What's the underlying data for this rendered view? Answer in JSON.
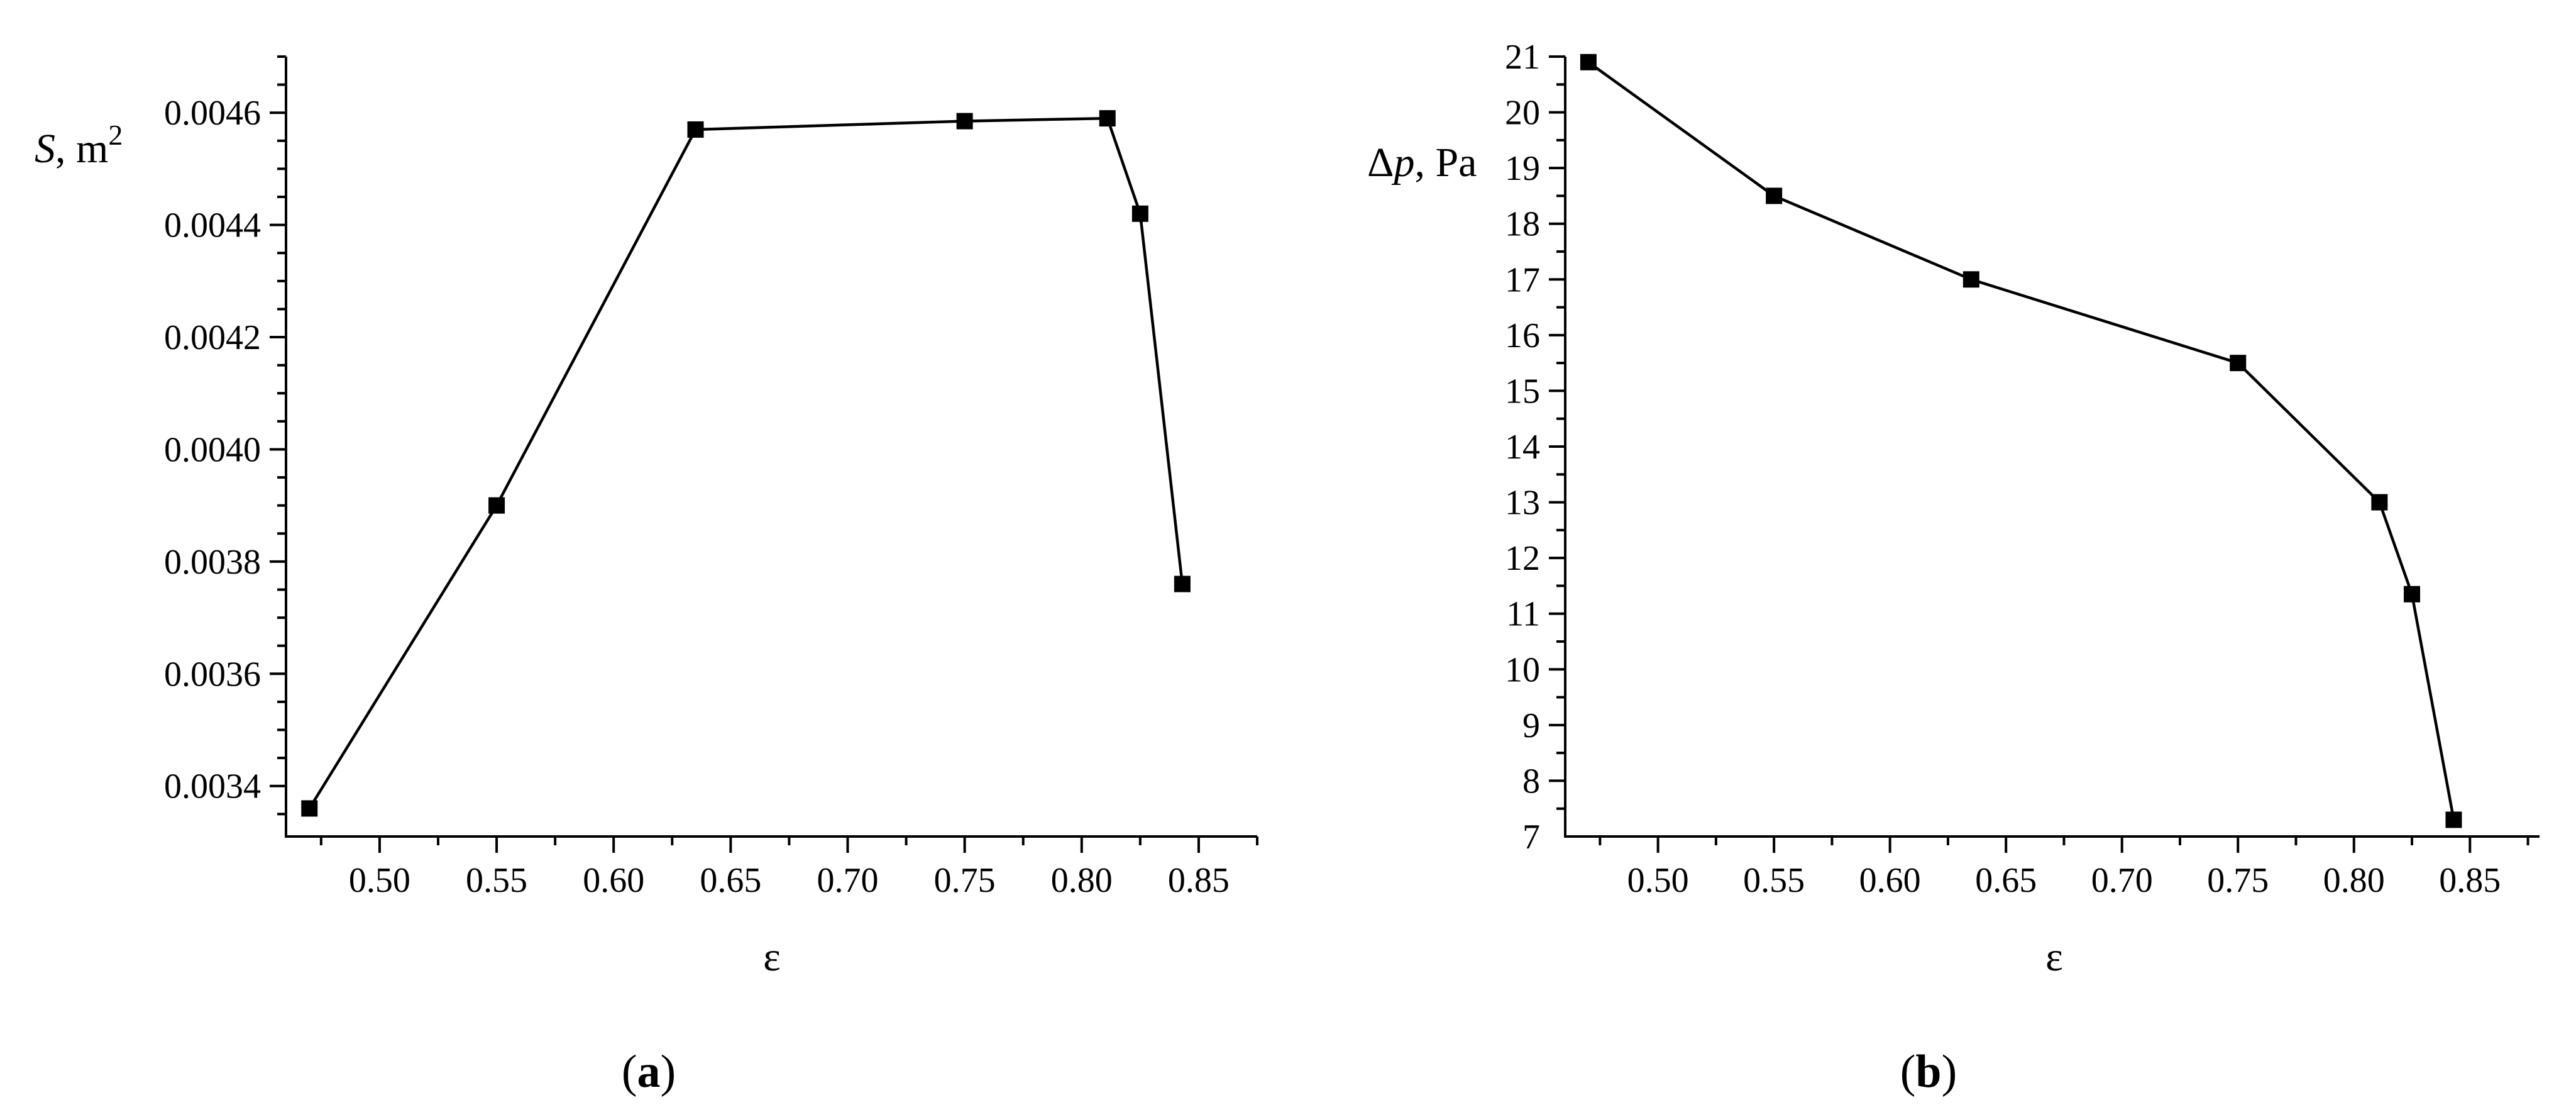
{
  "chart_data": [
    {
      "type": "line",
      "panel": {
        "open": "(",
        "letter": "a",
        "close": ")"
      },
      "xlabel": "ε",
      "ylabel": {
        "var": "S",
        "rest": ", m",
        "sup": "2"
      },
      "xlim": [
        0.46,
        0.875
      ],
      "ylim": [
        0.00331,
        0.0047
      ],
      "xticks": [
        "0.50",
        "0.55",
        "0.60",
        "0.65",
        "0.70",
        "0.75",
        "0.80",
        "0.85"
      ],
      "yticks": [
        "0.0034",
        "0.0036",
        "0.0038",
        "0.0040",
        "0.0042",
        "0.0044",
        "0.0046"
      ],
      "grid": false,
      "marker": "square",
      "series": [
        {
          "x": [
            0.47,
            0.55,
            0.635,
            0.75,
            0.811,
            0.825,
            0.843
          ],
          "y": [
            0.00336,
            0.0039,
            0.00457,
            0.004585,
            0.00459,
            0.00442,
            0.00376
          ]
        }
      ]
    },
    {
      "type": "line",
      "panel": {
        "open": "(",
        "letter": "b",
        "close": ")"
      },
      "xlabel": "ε",
      "ylabel": {
        "var": "p",
        "prefix": "Δ",
        "rest": ", Pa"
      },
      "xlim": [
        0.46,
        0.88
      ],
      "ylim": [
        7,
        21
      ],
      "xticks": [
        "0.50",
        "0.55",
        "0.60",
        "0.65",
        "0.70",
        "0.75",
        "0.80",
        "0.85"
      ],
      "yticks": [
        "7",
        "8",
        "9",
        "10",
        "11",
        "12",
        "13",
        "14",
        "15",
        "16",
        "17",
        "18",
        "19",
        "20",
        "21"
      ],
      "grid": false,
      "marker": "square",
      "series": [
        {
          "x": [
            0.47,
            0.55,
            0.635,
            0.75,
            0.811,
            0.825,
            0.843
          ],
          "y": [
            20.9,
            18.5,
            17.0,
            15.5,
            13.0,
            11.35,
            7.3
          ]
        }
      ]
    }
  ]
}
